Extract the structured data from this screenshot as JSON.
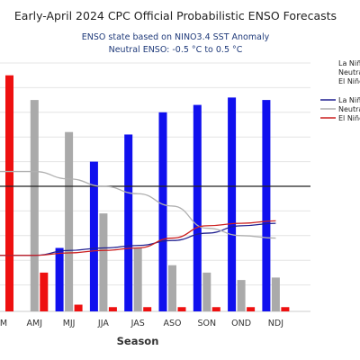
{
  "chart_data": {
    "type": "bar",
    "title": "Early-April 2024 CPC Official Probabilistic ENSO Forecasts",
    "subtitle": "ENSO state based on NINO3.4 SST Anomaly",
    "subtitle2": "Neutral ENSO: -0.5 °C to 0.5 °C",
    "xlabel": "Season",
    "ylabel": "",
    "ylim": [
      0,
      100
    ],
    "reference_line": 50,
    "categories": [
      "MAM",
      "AMJ",
      "MJJ",
      "JJA",
      "JAS",
      "ASO",
      "SON",
      "OND",
      "NDJ"
    ],
    "tick_labels": [
      "M",
      "AMJ",
      "MJJ",
      "JJA",
      "JAS",
      "ASO",
      "SON",
      "OND",
      "NDJ"
    ],
    "series": [
      {
        "name": "La Niña",
        "color": "#1010ee",
        "values": [
          0,
          0,
          25,
          60,
          71,
          80,
          83,
          86,
          85
        ]
      },
      {
        "name": "Neutral",
        "color": "#aaaaaa",
        "values": [
          0,
          85,
          72,
          39,
          25,
          18,
          15,
          12,
          13
        ]
      },
      {
        "name": "El Niño",
        "color": "#ee1010",
        "values": [
          95,
          15,
          2,
          1,
          1,
          1,
          1,
          1,
          1
        ]
      }
    ],
    "climatology": [
      {
        "name": "La Niña",
        "color": "#202090",
        "values": [
          22,
          22,
          24,
          25,
          26,
          28,
          31,
          34,
          35
        ]
      },
      {
        "name": "Neutral",
        "color": "#b0b0b0",
        "values": [
          56,
          56,
          53,
          50,
          47,
          42,
          33,
          30,
          29
        ]
      },
      {
        "name": "El Niño",
        "color": "#cc2020",
        "values": [
          22,
          22,
          23,
          24,
          25,
          29,
          34,
          35,
          36
        ]
      }
    ],
    "legend_top": [
      "La Niñ",
      "Neutra",
      "El Niño"
    ],
    "legend_bottom": [
      "La Niñ",
      "Neutra",
      "El Niño"
    ],
    "legend_position": "right",
    "grid": true
  }
}
